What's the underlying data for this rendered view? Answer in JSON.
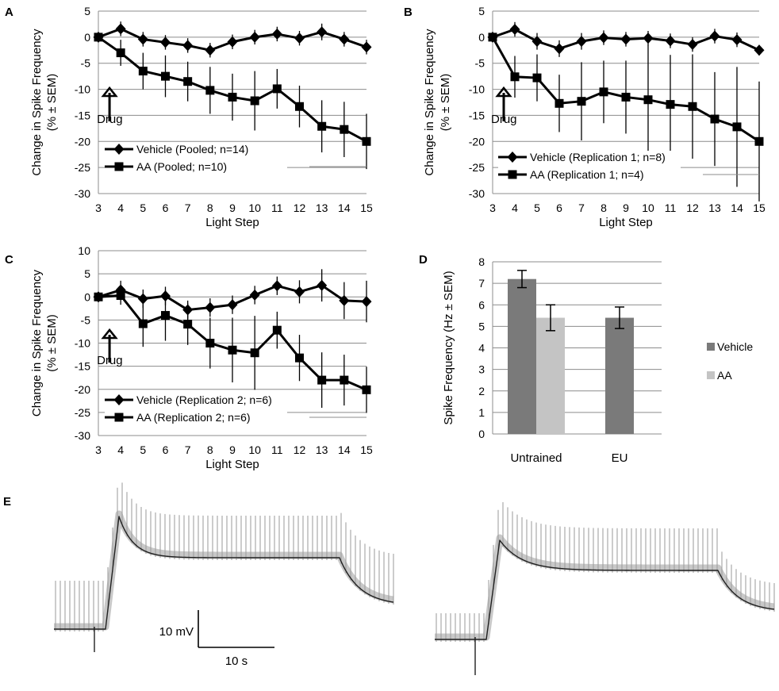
{
  "chart_data": [
    {
      "panel": "A",
      "type": "line",
      "ylabel": [
        "Change in Spike Frequency",
        "(% ± SEM)"
      ],
      "xlabel": "Light Step",
      "ylim": [
        -30,
        5
      ],
      "yticks": [
        5,
        0,
        -5,
        -10,
        -15,
        -20,
        -25,
        -30
      ],
      "x": [
        3,
        4,
        5,
        6,
        7,
        8,
        9,
        10,
        11,
        12,
        13,
        14,
        15
      ],
      "annotation": "Drug",
      "annotation_x": 3.5,
      "series": [
        {
          "name": "Vehicle (Pooled; n=14)",
          "marker": "diamond",
          "values": [
            0,
            1.6,
            -0.4,
            -1.0,
            -1.6,
            -2.5,
            -0.9,
            0,
            0.6,
            -0.2,
            1.0,
            -0.4,
            -1.9
          ],
          "err": [
            0.6,
            1.4,
            1.4,
            1.4,
            1.4,
            1.4,
            1.4,
            1.4,
            1.4,
            1.4,
            1.6,
            1.4,
            1.4
          ]
        },
        {
          "name": "AA (Pooled; n=10)",
          "marker": "square",
          "values": [
            0,
            -3.0,
            -6.5,
            -7.5,
            -8.5,
            -10.2,
            -11.5,
            -12.2,
            -9.9,
            -13.3,
            -17.1,
            -17.7,
            -20.0
          ],
          "err": [
            0.6,
            2.5,
            3.5,
            4.0,
            3.8,
            4.5,
            4.5,
            5.7,
            3.8,
            4.0,
            5.0,
            5.3,
            5.3
          ]
        }
      ]
    },
    {
      "panel": "B",
      "type": "line",
      "ylabel": [
        "Change in Spike Frequency",
        "(% ± SEM)"
      ],
      "xlabel": "Light Step",
      "ylim": [
        -30,
        5
      ],
      "yticks": [
        5,
        0,
        -5,
        -10,
        -15,
        -20,
        -25,
        -30
      ],
      "x": [
        3,
        4,
        5,
        6,
        7,
        8,
        9,
        10,
        11,
        12,
        13,
        14,
        15
      ],
      "annotation": "Drug",
      "annotation_x": 3.5,
      "series": [
        {
          "name": "Vehicle (Replication 1; n=8)",
          "marker": "diamond",
          "values": [
            0,
            1.5,
            -0.8,
            -2.2,
            -0.8,
            -0.1,
            -0.4,
            -0.2,
            -0.7,
            -1.4,
            0.2,
            -0.5,
            -2.5
          ],
          "err": [
            0.6,
            1.4,
            1.6,
            1.6,
            1.6,
            1.4,
            1.4,
            1.4,
            1.4,
            1.4,
            1.4,
            1.4,
            1.0
          ]
        },
        {
          "name": "AA (Replication 1; n=4)",
          "marker": "square",
          "values": [
            0,
            -7.6,
            -7.8,
            -12.7,
            -12.3,
            -10.5,
            -11.5,
            -12.0,
            -12.9,
            -13.3,
            -15.7,
            -17.2,
            -20.0
          ],
          "err": [
            0.6,
            4.0,
            4.5,
            5.5,
            7.5,
            6.0,
            7.0,
            10.5,
            9.5,
            10.0,
            9.0,
            11.5,
            11.5
          ]
        }
      ]
    },
    {
      "panel": "C",
      "type": "line",
      "ylabel": [
        "Change in Spike Frequency",
        "(% ± SEM)"
      ],
      "xlabel": "Light Step",
      "ylim": [
        -30,
        10
      ],
      "yticks": [
        10,
        5,
        0,
        -5,
        -10,
        -15,
        -20,
        -25,
        -30
      ],
      "x": [
        3,
        4,
        5,
        6,
        7,
        8,
        9,
        10,
        11,
        12,
        13,
        14,
        15
      ],
      "annotation": "Drug",
      "annotation_x": 3.5,
      "series": [
        {
          "name": "Vehicle (Replication 2; n=6)",
          "marker": "diamond",
          "values": [
            0,
            1.5,
            -0.4,
            0.2,
            -2.8,
            -2.3,
            -1.7,
            0.4,
            2.4,
            1.1,
            2.5,
            -0.8,
            -1.0
          ],
          "err": [
            0.6,
            2.0,
            2.0,
            2.0,
            2.0,
            2.0,
            2.0,
            2.0,
            2.0,
            2.5,
            3.5,
            4.0,
            4.5
          ]
        },
        {
          "name": "AA (Replication 2; n=6)",
          "marker": "square",
          "values": [
            0,
            0.3,
            -5.8,
            -4.0,
            -5.9,
            -10.0,
            -11.5,
            -12.1,
            -7.2,
            -13.2,
            -18.0,
            -18.0,
            -20.1
          ],
          "err": [
            0.6,
            2.0,
            5.0,
            5.5,
            4.5,
            5.5,
            7.0,
            8.0,
            4.0,
            5.0,
            6.0,
            5.5,
            5.0
          ]
        }
      ]
    },
    {
      "panel": "D",
      "type": "bar",
      "ylabel": "Spike Frequency (Hz ± SEM)",
      "ylim": [
        0,
        8
      ],
      "yticks": [
        8,
        7,
        6,
        5,
        4,
        3,
        2,
        1,
        0
      ],
      "categories": [
        "Untrained",
        "EU"
      ],
      "series": [
        {
          "name": "Vehicle",
          "color": "#7a7a7a",
          "values": [
            7.2,
            5.4
          ],
          "err": [
            0.4,
            0.5
          ]
        },
        {
          "name": "AA",
          "color": "#c4c4c4",
          "values": [
            5.4,
            null
          ],
          "err": [
            0.6,
            null
          ]
        }
      ]
    }
  ],
  "panel_labels": [
    "A",
    "B",
    "C",
    "D",
    "E"
  ],
  "traces": {
    "panel": "E",
    "scalebar_v_label": "10 mV",
    "scalebar_h_label": "10 s"
  },
  "colors": {
    "line": "#000000",
    "grid": "#8c8c8c",
    "trace_light": "#9a9a9a",
    "trace_dark": "#202020"
  }
}
